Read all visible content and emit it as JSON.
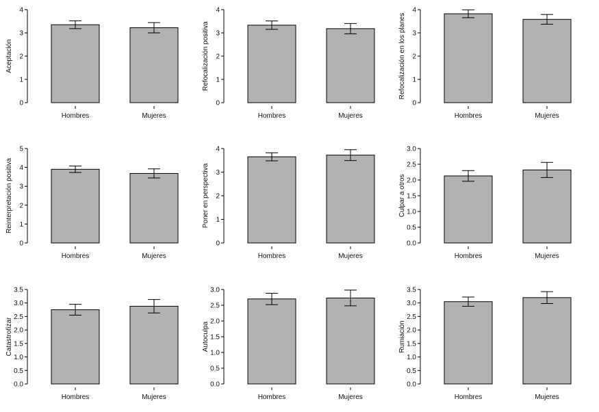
{
  "figure": {
    "background": "#ffffff",
    "bar_fill": "#b2b2b2",
    "stroke": "#000000"
  },
  "chart_data": [
    {
      "type": "bar",
      "ylabel": "Aceptación",
      "categories": [
        "Hombres",
        "Mujeres"
      ],
      "values": [
        3.35,
        3.22
      ],
      "errors": [
        0.17,
        0.22
      ],
      "ylim": [
        0,
        4
      ],
      "ticks": [
        "0",
        "1",
        "2",
        "3",
        "4"
      ],
      "grid": false
    },
    {
      "type": "bar",
      "ylabel": "Refocalización positiva",
      "categories": [
        "Hombres",
        "Mujeres"
      ],
      "values": [
        3.33,
        3.18
      ],
      "errors": [
        0.18,
        0.22
      ],
      "ylim": [
        0,
        4
      ],
      "ticks": [
        "0",
        "1",
        "2",
        "3",
        "4"
      ],
      "grid": false
    },
    {
      "type": "bar",
      "ylabel": "Refocalización en los planes",
      "categories": [
        "Hombres",
        "Mujeres"
      ],
      "values": [
        3.82,
        3.58
      ],
      "errors": [
        0.17,
        0.21
      ],
      "ylim": [
        0,
        4
      ],
      "ticks": [
        "0",
        "1",
        "2",
        "3",
        "4"
      ],
      "grid": false
    },
    {
      "type": "bar",
      "ylabel": "Reinterpretación positiva",
      "categories": [
        "Hombres",
        "Mujeres"
      ],
      "values": [
        3.9,
        3.68
      ],
      "errors": [
        0.17,
        0.24
      ],
      "ylim": [
        0,
        5
      ],
      "ticks": [
        "0",
        "1",
        "2",
        "3",
        "4",
        "5"
      ],
      "grid": false
    },
    {
      "type": "bar",
      "ylabel": "Poner en perspectiva",
      "categories": [
        "Hombres",
        "Mujeres"
      ],
      "values": [
        3.65,
        3.72
      ],
      "errors": [
        0.17,
        0.23
      ],
      "ylim": [
        0,
        4
      ],
      "ticks": [
        "0",
        "1",
        "2",
        "3",
        "4"
      ],
      "grid": false
    },
    {
      "type": "bar",
      "ylabel": "Culpar a otros",
      "categories": [
        "Hombres",
        "Mujeres"
      ],
      "values": [
        2.13,
        2.32
      ],
      "errors": [
        0.17,
        0.24
      ],
      "ylim": [
        0,
        3
      ],
      "ticks": [
        "0.0",
        "0.5",
        "1.0",
        "1.5",
        "2.0",
        "2.5",
        "3.0"
      ],
      "grid": false
    },
    {
      "type": "bar",
      "ylabel": "Catastrofizar",
      "categories": [
        "Hombres",
        "Mujeres"
      ],
      "values": [
        2.75,
        2.88
      ],
      "errors": [
        0.2,
        0.25
      ],
      "ylim": [
        0,
        3.5
      ],
      "ticks": [
        "0.0",
        "0.5",
        "1.0",
        "1.5",
        "2.0",
        "2.5",
        "3.0",
        "3.5"
      ],
      "grid": false
    },
    {
      "type": "bar",
      "ylabel": "Autoculpa",
      "categories": [
        "Hombres",
        "Mujeres"
      ],
      "values": [
        2.7,
        2.73
      ],
      "errors": [
        0.18,
        0.25
      ],
      "ylim": [
        0,
        3
      ],
      "ticks": [
        "0.0",
        "0.5",
        "1.0",
        "1.5",
        "2.0",
        "2.5",
        "3.0"
      ],
      "grid": false
    },
    {
      "type": "bar",
      "ylabel": "Rumiación",
      "categories": [
        "Hombres",
        "Mujeres"
      ],
      "values": [
        3.05,
        3.2
      ],
      "errors": [
        0.17,
        0.22
      ],
      "ylim": [
        0,
        3.5
      ],
      "ticks": [
        "0.0",
        "0.5",
        "1.0",
        "1.5",
        "2.0",
        "2.5",
        "3.0",
        "3.5"
      ],
      "grid": false
    }
  ]
}
